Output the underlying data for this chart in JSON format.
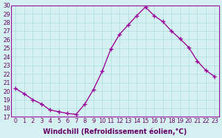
{
  "x": [
    0,
    1,
    2,
    3,
    4,
    5,
    6,
    7,
    8,
    9,
    10,
    11,
    12,
    13,
    14,
    15,
    16,
    17,
    18,
    19,
    20,
    21,
    22,
    23
  ],
  "y": [
    20.3,
    19.7,
    19.0,
    18.5,
    17.8,
    17.6,
    17.4,
    17.3,
    18.5,
    20.2,
    22.3,
    24.9,
    26.6,
    27.7,
    28.8,
    29.8,
    28.8,
    28.1,
    27.0,
    26.1,
    25.1,
    23.5,
    22.4,
    21.7
  ],
  "line_color": "#990099",
  "marker": "+",
  "marker_size": 4,
  "bg_color": "#d4f0f0",
  "grid_color": "#aadddd",
  "xlabel": "Windchill (Refroidissement éolien,°C)",
  "ylim": [
    17,
    30
  ],
  "xlim_min": -0.5,
  "xlim_max": 23.5,
  "yticks": [
    17,
    18,
    19,
    20,
    21,
    22,
    23,
    24,
    25,
    26,
    27,
    28,
    29,
    30
  ],
  "xticks": [
    0,
    1,
    2,
    3,
    4,
    5,
    6,
    7,
    8,
    9,
    10,
    11,
    12,
    13,
    14,
    15,
    16,
    17,
    18,
    19,
    20,
    21,
    22,
    23
  ],
  "tick_fontsize": 6,
  "xlabel_fontsize": 7,
  "label_color": "#660066",
  "spine_color": "#990099"
}
